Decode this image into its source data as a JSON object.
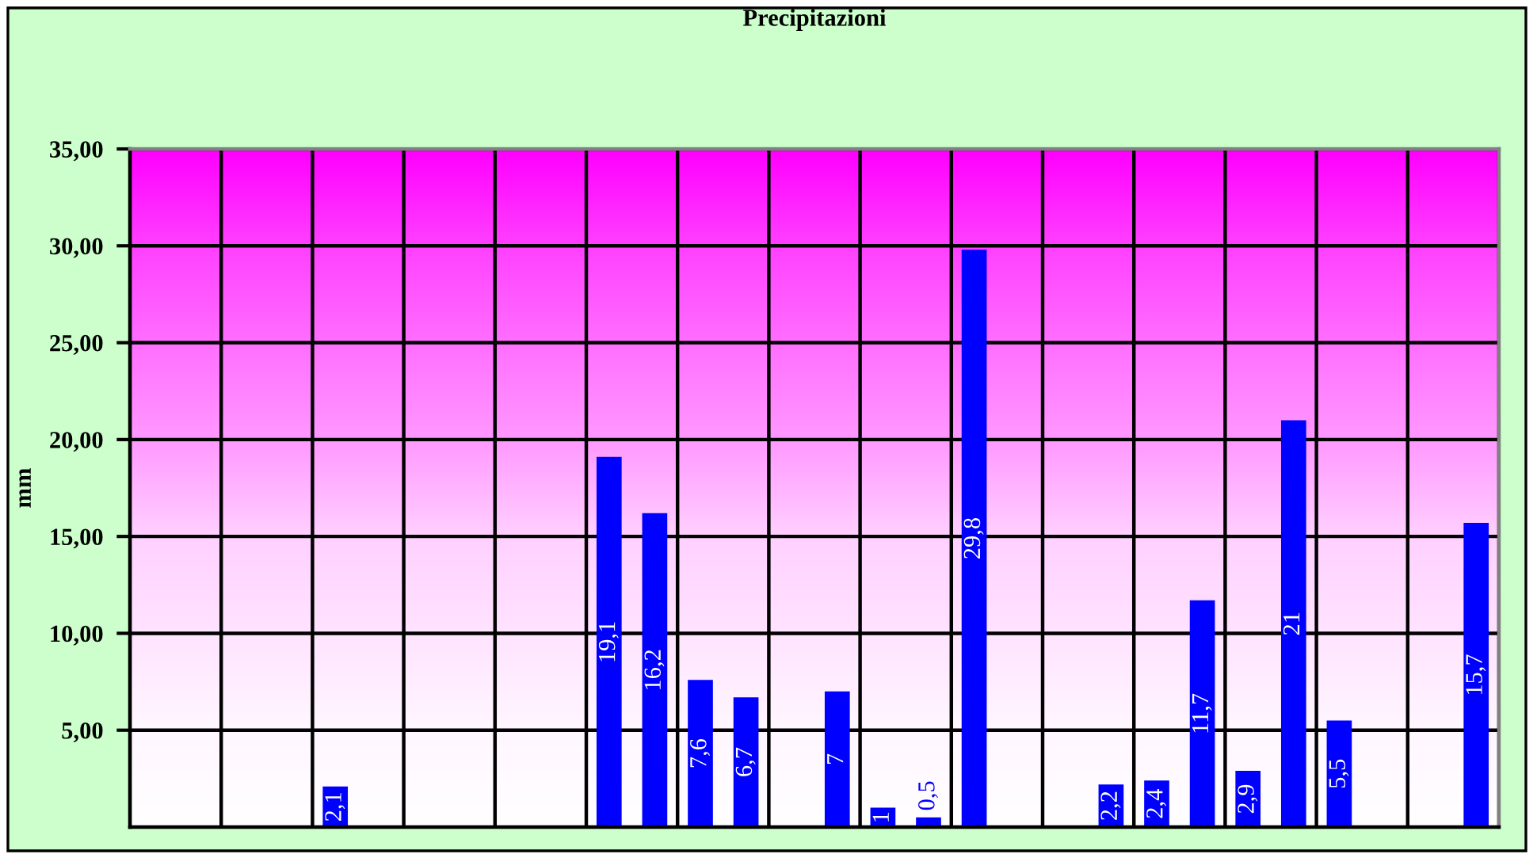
{
  "chart_data": {
    "type": "bar",
    "title": "Precipitazioni",
    "ylabel": "mm",
    "categories": [
      null,
      null,
      null,
      null,
      null,
      null,
      null,
      null,
      null,
      null,
      null,
      null,
      null,
      null,
      null,
      null,
      null,
      null,
      null,
      null,
      null,
      null,
      null,
      null,
      null,
      null,
      null,
      null,
      null,
      null
    ],
    "values": [
      null,
      null,
      null,
      null,
      2.1,
      null,
      null,
      null,
      null,
      null,
      19.1,
      16.2,
      7.6,
      6.7,
      null,
      7,
      1,
      0.5,
      29.8,
      null,
      null,
      2.2,
      2.4,
      11.7,
      2.9,
      21,
      5.5,
      null,
      null,
      15.7
    ],
    "value_labels": [
      null,
      null,
      null,
      null,
      "2,1",
      null,
      null,
      null,
      null,
      null,
      "19,1",
      "16,2",
      "7,6",
      "6,7",
      null,
      "7",
      "1",
      "0,5",
      "29,8",
      null,
      null,
      "2,2",
      "2,4",
      "11,7",
      "2,9",
      "21",
      "5,5",
      null,
      null,
      "15,7"
    ],
    "color": "#0000ff",
    "ylim": [
      0,
      35
    ],
    "yticks": [
      {
        "value": 5,
        "label": "5,00"
      },
      {
        "value": 10,
        "label": "10,00"
      },
      {
        "value": 15,
        "label": "15,00"
      },
      {
        "value": 20,
        "label": "20,00"
      },
      {
        "value": 25,
        "label": "25,00"
      },
      {
        "value": 30,
        "label": "30,00"
      },
      {
        "value": 35,
        "label": "35,00"
      }
    ],
    "grid": true,
    "tick_labels": "y"
  }
}
